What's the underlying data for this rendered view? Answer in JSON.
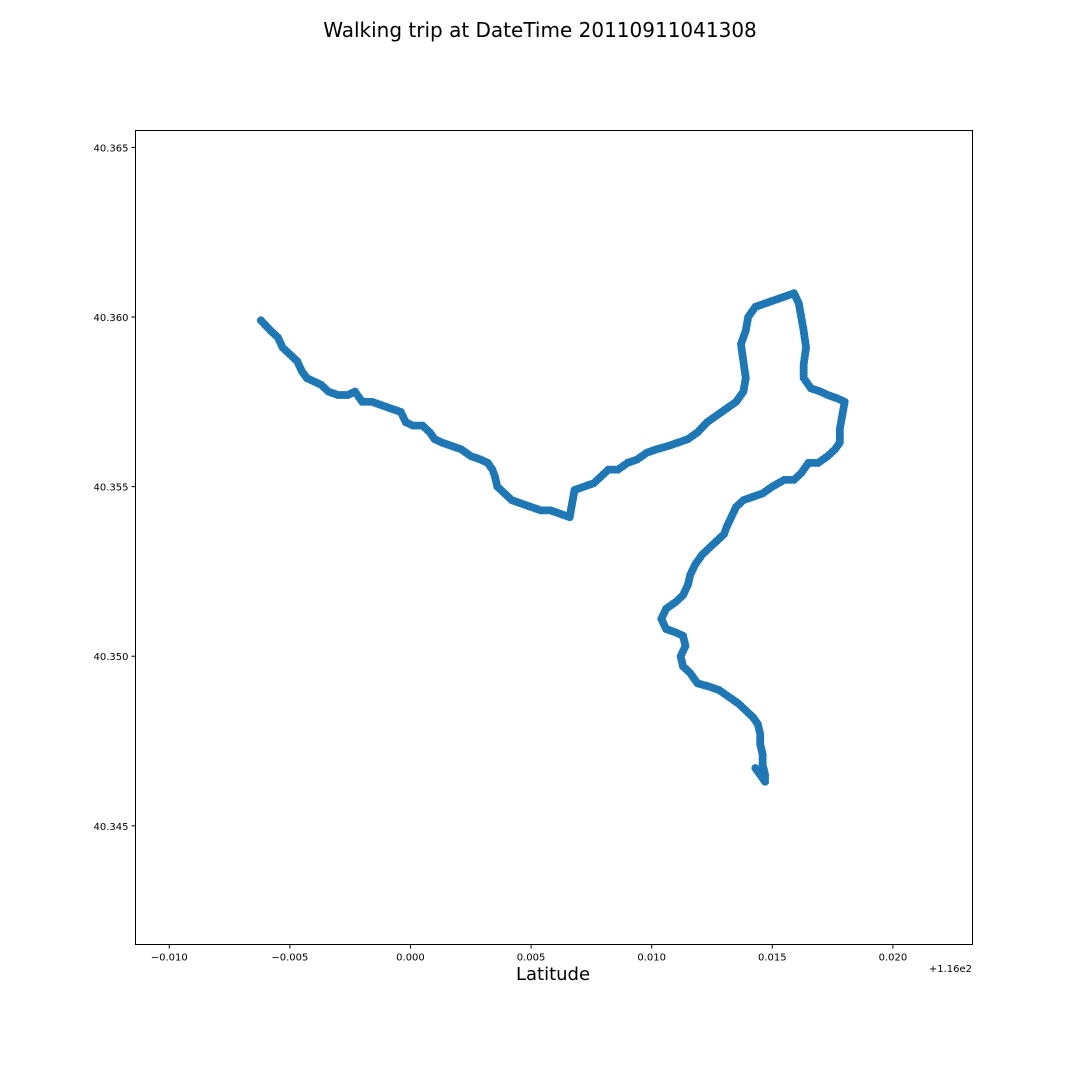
{
  "chart_data": {
    "type": "scatter",
    "title": "Walking trip at DateTime 20110911041308",
    "xlabel": "Latitude",
    "ylabel": "",
    "x_offset_label": "+1.16e2",
    "xlim": [
      -0.0114,
      0.0233
    ],
    "ylim": [
      40.3415,
      40.3655
    ],
    "x_ticks": [
      -0.01,
      -0.005,
      0.0,
      0.005,
      0.01,
      0.015,
      0.02
    ],
    "x_tick_labels": [
      "−0.010",
      "−0.005",
      "0.000",
      "0.005",
      "0.010",
      "0.015",
      "0.020"
    ],
    "y_ticks": [
      40.345,
      40.35,
      40.355,
      40.36,
      40.365
    ],
    "y_tick_labels": [
      "40.345",
      "40.350",
      "40.355",
      "40.360",
      "40.365"
    ],
    "grid": false,
    "legend": false,
    "marker_color": "#1f77b4",
    "series": [
      {
        "name": "",
        "points": [
          [
            -0.0062,
            40.3599
          ],
          [
            -0.0058,
            40.3596
          ],
          [
            -0.0055,
            40.3594
          ],
          [
            -0.0053,
            40.3591
          ],
          [
            -0.005,
            40.3589
          ],
          [
            -0.0047,
            40.3587
          ],
          [
            -0.0045,
            40.3584
          ],
          [
            -0.0043,
            40.3582
          ],
          [
            -0.004,
            40.3581
          ],
          [
            -0.0037,
            40.358
          ],
          [
            -0.0034,
            40.3578
          ],
          [
            -0.003,
            40.3577
          ],
          [
            -0.0026,
            40.3577
          ],
          [
            -0.0023,
            40.3578
          ],
          [
            -0.002,
            40.3575
          ],
          [
            -0.0016,
            40.3575
          ],
          [
            -0.0012,
            40.3574
          ],
          [
            -0.0008,
            40.3573
          ],
          [
            -0.0004,
            40.3572
          ],
          [
            -0.0002,
            40.3569
          ],
          [
            0.0001,
            40.3568
          ],
          [
            0.0005,
            40.3568
          ],
          [
            0.0008,
            40.3566
          ],
          [
            0.001,
            40.3564
          ],
          [
            0.0013,
            40.3563
          ],
          [
            0.0017,
            40.3562
          ],
          [
            0.0021,
            40.3561
          ],
          [
            0.0025,
            40.3559
          ],
          [
            0.0029,
            40.3558
          ],
          [
            0.0032,
            40.3557
          ],
          [
            0.0034,
            40.3555
          ],
          [
            0.0035,
            40.3553
          ],
          [
            0.0036,
            40.355
          ],
          [
            0.0039,
            40.3548
          ],
          [
            0.0042,
            40.3546
          ],
          [
            0.0046,
            40.3545
          ],
          [
            0.005,
            40.3544
          ],
          [
            0.0054,
            40.3543
          ],
          [
            0.0058,
            40.3543
          ],
          [
            0.0062,
            40.3542
          ],
          [
            0.0066,
            40.3541
          ],
          [
            0.0068,
            40.3549
          ],
          [
            0.0072,
            40.355
          ],
          [
            0.0076,
            40.3551
          ],
          [
            0.0079,
            40.3553
          ],
          [
            0.0082,
            40.3555
          ],
          [
            0.0086,
            40.3555
          ],
          [
            0.009,
            40.3557
          ],
          [
            0.0094,
            40.3558
          ],
          [
            0.0098,
            40.356
          ],
          [
            0.0102,
            40.3561
          ],
          [
            0.0107,
            40.3562
          ],
          [
            0.0111,
            40.3563
          ],
          [
            0.0115,
            40.3564
          ],
          [
            0.0119,
            40.3566
          ],
          [
            0.0123,
            40.3569
          ],
          [
            0.0127,
            40.3571
          ],
          [
            0.0131,
            40.3573
          ],
          [
            0.0135,
            40.3575
          ],
          [
            0.0138,
            40.3578
          ],
          [
            0.0139,
            40.3582
          ],
          [
            0.0138,
            40.3587
          ],
          [
            0.0137,
            40.3592
          ],
          [
            0.0139,
            40.3596
          ],
          [
            0.014,
            40.36
          ],
          [
            0.0143,
            40.3603
          ],
          [
            0.0147,
            40.3604
          ],
          [
            0.0151,
            40.3605
          ],
          [
            0.0155,
            40.3606
          ],
          [
            0.0159,
            40.3607
          ],
          [
            0.0161,
            40.3604
          ],
          [
            0.0162,
            40.36
          ],
          [
            0.0163,
            40.3596
          ],
          [
            0.0164,
            40.3591
          ],
          [
            0.0163,
            40.3586
          ],
          [
            0.0163,
            40.3582
          ],
          [
            0.0166,
            40.3579
          ],
          [
            0.017,
            40.3578
          ],
          [
            0.0173,
            40.3577
          ],
          [
            0.0177,
            40.3576
          ],
          [
            0.018,
            40.3575
          ],
          [
            0.0179,
            40.3571
          ],
          [
            0.0178,
            40.3567
          ],
          [
            0.0178,
            40.3563
          ],
          [
            0.0176,
            40.3561
          ],
          [
            0.0173,
            40.3559
          ],
          [
            0.0169,
            40.3557
          ],
          [
            0.0165,
            40.3557
          ],
          [
            0.0162,
            40.3554
          ],
          [
            0.0159,
            40.3552
          ],
          [
            0.0155,
            40.3552
          ],
          [
            0.015,
            40.355
          ],
          [
            0.0146,
            40.3548
          ],
          [
            0.0142,
            40.3547
          ],
          [
            0.0138,
            40.3546
          ],
          [
            0.0135,
            40.3544
          ],
          [
            0.0133,
            40.3541
          ],
          [
            0.0131,
            40.3538
          ],
          [
            0.013,
            40.3536
          ],
          [
            0.0127,
            40.3534
          ],
          [
            0.0124,
            40.3532
          ],
          [
            0.0121,
            40.353
          ],
          [
            0.0118,
            40.3527
          ],
          [
            0.0116,
            40.3524
          ],
          [
            0.0115,
            40.3521
          ],
          [
            0.0113,
            40.3518
          ],
          [
            0.011,
            40.3516
          ],
          [
            0.0106,
            40.3514
          ],
          [
            0.0104,
            40.3511
          ],
          [
            0.0106,
            40.3508
          ],
          [
            0.011,
            40.3507
          ],
          [
            0.0113,
            40.3506
          ],
          [
            0.0114,
            40.3503
          ],
          [
            0.0112,
            40.35
          ],
          [
            0.0113,
            40.3497
          ],
          [
            0.0116,
            40.3495
          ],
          [
            0.0119,
            40.3492
          ],
          [
            0.0124,
            40.3491
          ],
          [
            0.0128,
            40.349
          ],
          [
            0.0132,
            40.3488
          ],
          [
            0.0136,
            40.3486
          ],
          [
            0.0139,
            40.3484
          ],
          [
            0.0142,
            40.3482
          ],
          [
            0.0144,
            40.348
          ],
          [
            0.0145,
            40.3477
          ],
          [
            0.0145,
            40.3474
          ],
          [
            0.0146,
            40.3471
          ],
          [
            0.0146,
            40.3468
          ],
          [
            0.0147,
            40.3465
          ],
          [
            0.0147,
            40.3463
          ],
          [
            0.0143,
            40.3467
          ]
        ]
      }
    ]
  }
}
